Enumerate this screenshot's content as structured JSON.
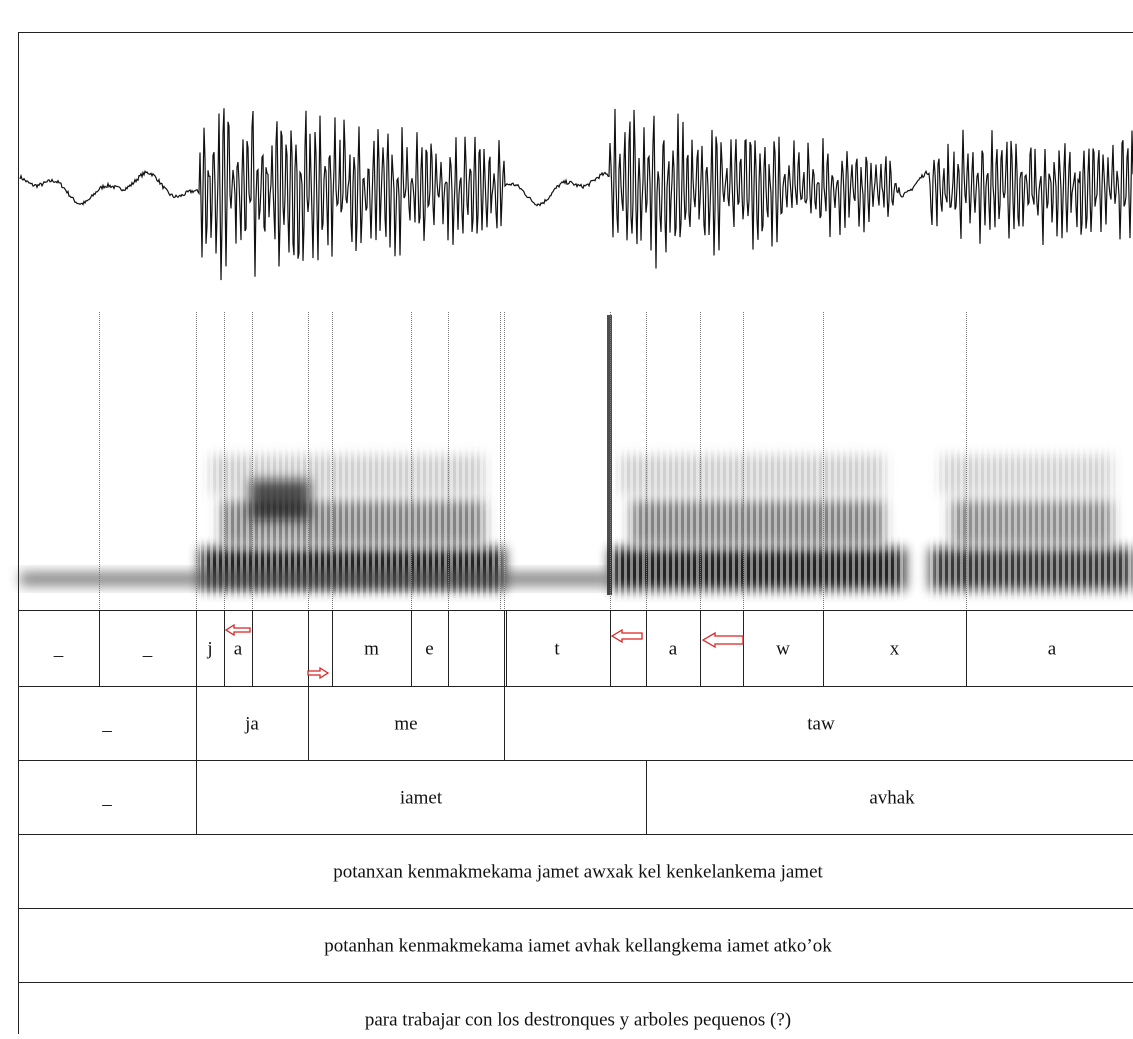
{
  "tiers": [
    {
      "labels": [
        "_",
        "_",
        "j",
        "a",
        null,
        null,
        "m",
        "e",
        null,
        "t",
        null,
        "a",
        null,
        "w",
        "x",
        "a"
      ]
    },
    {
      "labels": [
        "_",
        "ja",
        "me",
        "taw"
      ]
    },
    {
      "labels": [
        "_",
        "iamet",
        "avhak"
      ]
    },
    {
      "labels": [
        "potanxan kenmakmekama jamet awxak kel kenkelankema jamet"
      ]
    },
    {
      "labels": [
        "potanhan kenmakmekama iamet avhak kellangkema iamet atko’ok"
      ]
    },
    {
      "labels": [
        "para trabajar con los destronques y arboles pequenos (?)"
      ]
    }
  ]
}
